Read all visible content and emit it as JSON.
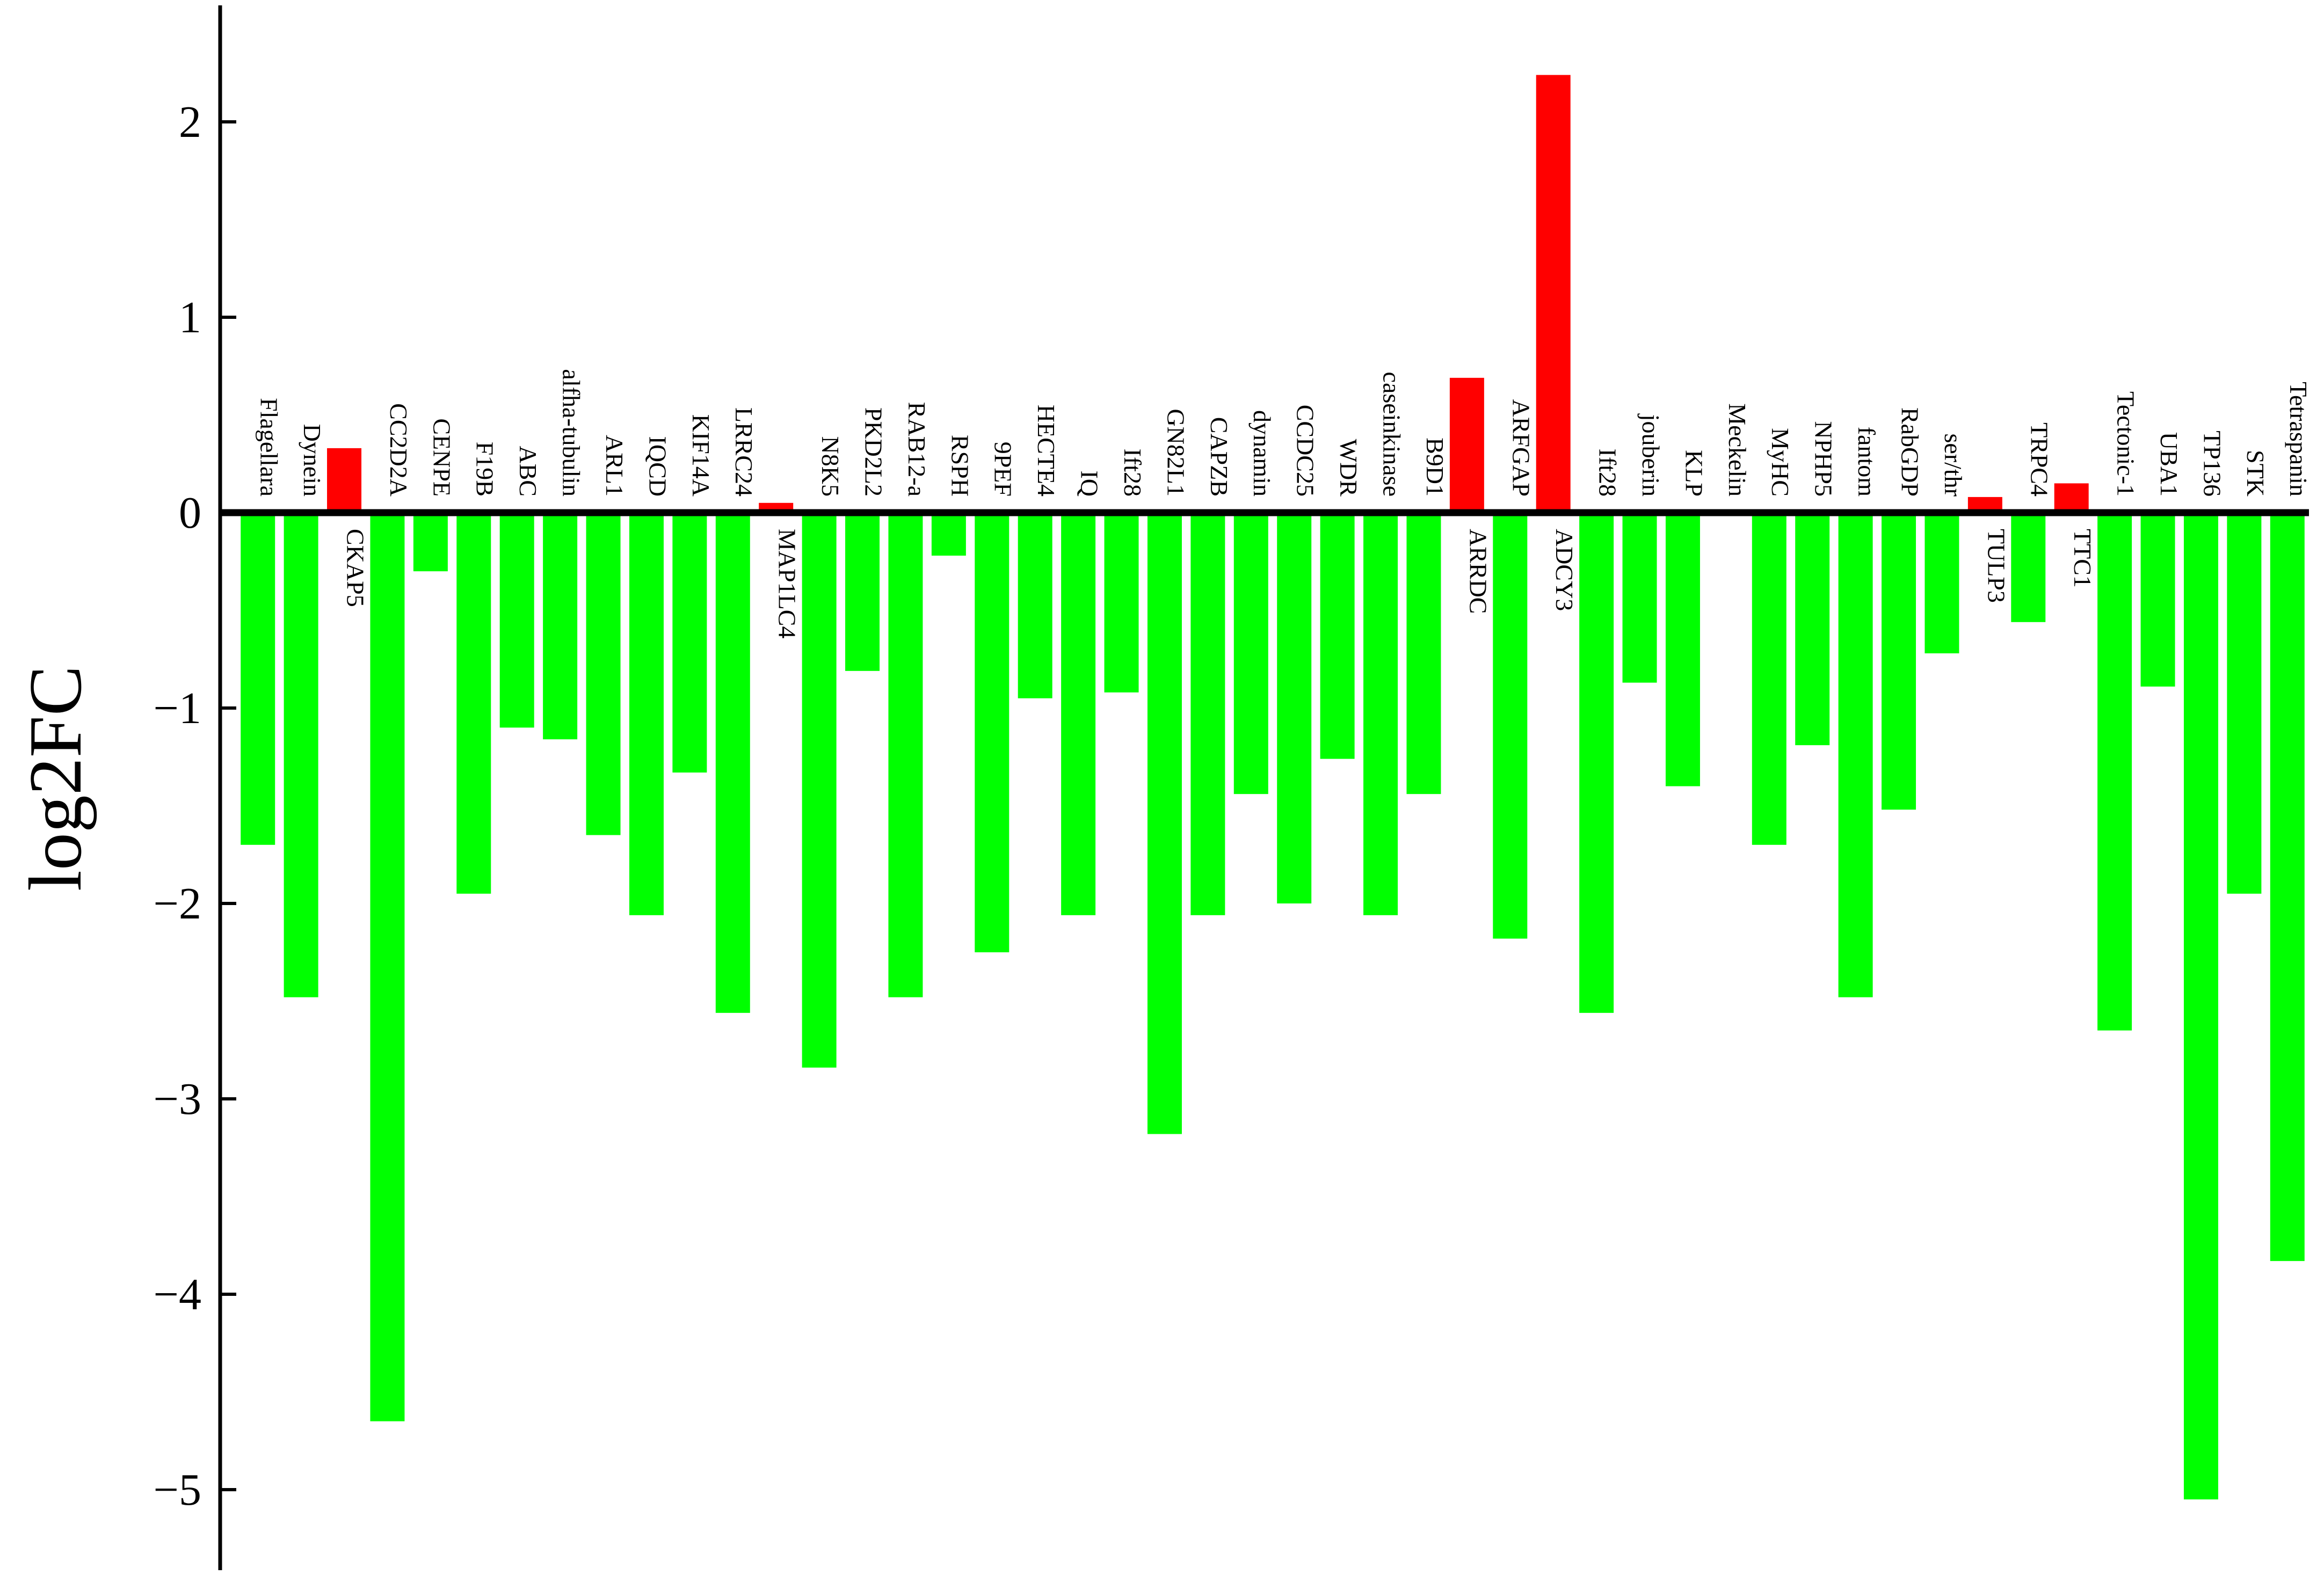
{
  "chart_data": {
    "type": "bar",
    "title": "",
    "xlabel": "",
    "ylabel": "log2FC",
    "ylim": [
      -5.3,
      2.6
    ],
    "yticks": [
      2,
      1,
      0,
      -1,
      -2,
      -3,
      -4,
      -5
    ],
    "ytick_labels": [
      "2",
      "1",
      "0",
      "−1",
      "−2",
      "−3",
      "−4",
      "−5"
    ],
    "grid": false,
    "legend": "none",
    "colors": {
      "positive": "#ff0000",
      "negative": "#00ff00",
      "axis": "#000000"
    },
    "categories": [
      "Flagellara",
      "Dynein",
      "CKAP5",
      "CC2D2A",
      "CENPE",
      "F19B",
      "ABC",
      "alfha-tubulin",
      "ARL1",
      "IQCD",
      "KIF14A",
      "LRRC24",
      "MAP1LC4",
      "N8K5",
      "PKD2L2",
      "RAB12-a",
      "RSPH",
      "9PEF",
      "HECTE4",
      "IQ",
      "Ift28",
      "GN82L1",
      "CAPZB",
      "dynamin",
      "CCDC25",
      "WDR",
      "caseinkinase",
      "B9D1",
      "ARRDC",
      "ARFGAP",
      "ADCY3",
      "Ift28",
      "jouberin",
      "KLP",
      "Meckelin",
      "MyHC",
      "NPHP5",
      "fantom",
      "RabGDP",
      "ser/thr",
      "TULP3",
      "TRPC4",
      "TTC1",
      "Tectonic-1",
      "UBA1",
      "TP136",
      "STK",
      "Tetraspanin"
    ],
    "values": [
      -1.7,
      -2.48,
      0.33,
      -4.65,
      -0.3,
      -1.95,
      -1.1,
      -1.16,
      -1.65,
      -2.06,
      -1.33,
      -2.56,
      0.05,
      -2.84,
      -0.81,
      -2.48,
      -0.22,
      -2.25,
      -0.95,
      -2.06,
      -0.92,
      -3.18,
      -2.06,
      -1.44,
      -2.0,
      -1.26,
      -2.06,
      -1.44,
      0.69,
      -2.18,
      2.24,
      -2.56,
      -0.87,
      -1.4,
      0.0,
      -1.7,
      -1.19,
      -2.48,
      -1.52,
      -0.72,
      0.08,
      -0.56,
      0.15,
      -2.65,
      -0.89,
      -5.05,
      -1.95,
      -3.83
    ]
  }
}
